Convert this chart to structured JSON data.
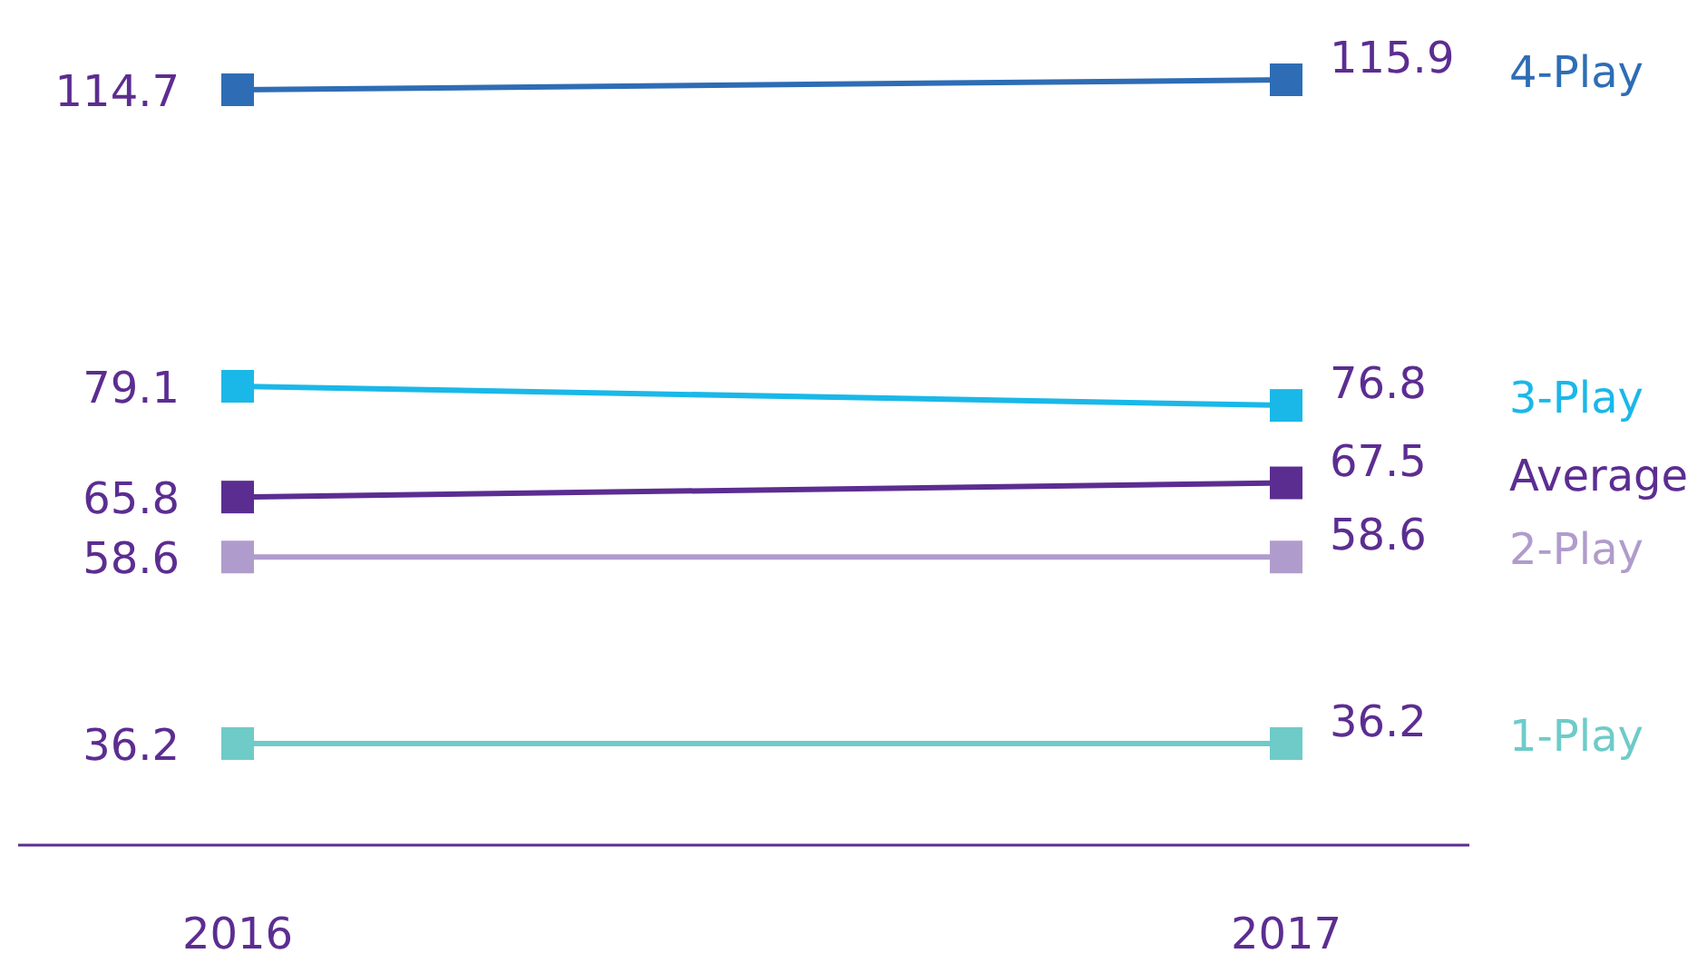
{
  "chart_data": {
    "type": "line",
    "categories": [
      "2016",
      "2017"
    ],
    "series": [
      {
        "name": "4-Play",
        "color": "#2e6db5",
        "values": [
          114.7,
          115.9
        ]
      },
      {
        "name": "3-Play",
        "color": "#1ab8e8",
        "values": [
          79.1,
          76.8
        ]
      },
      {
        "name": "Average",
        "color": "#5c2d91",
        "values": [
          65.8,
          67.5
        ]
      },
      {
        "name": "2-Play",
        "color": "#b09ccc",
        "values": [
          58.6,
          58.6
        ]
      },
      {
        "name": "1-Play",
        "color": "#6ecbc8",
        "values": [
          36.2,
          36.2
        ]
      }
    ],
    "data_labels": true,
    "marker": "square",
    "line_style": "solid",
    "tick_labels": "x"
  }
}
